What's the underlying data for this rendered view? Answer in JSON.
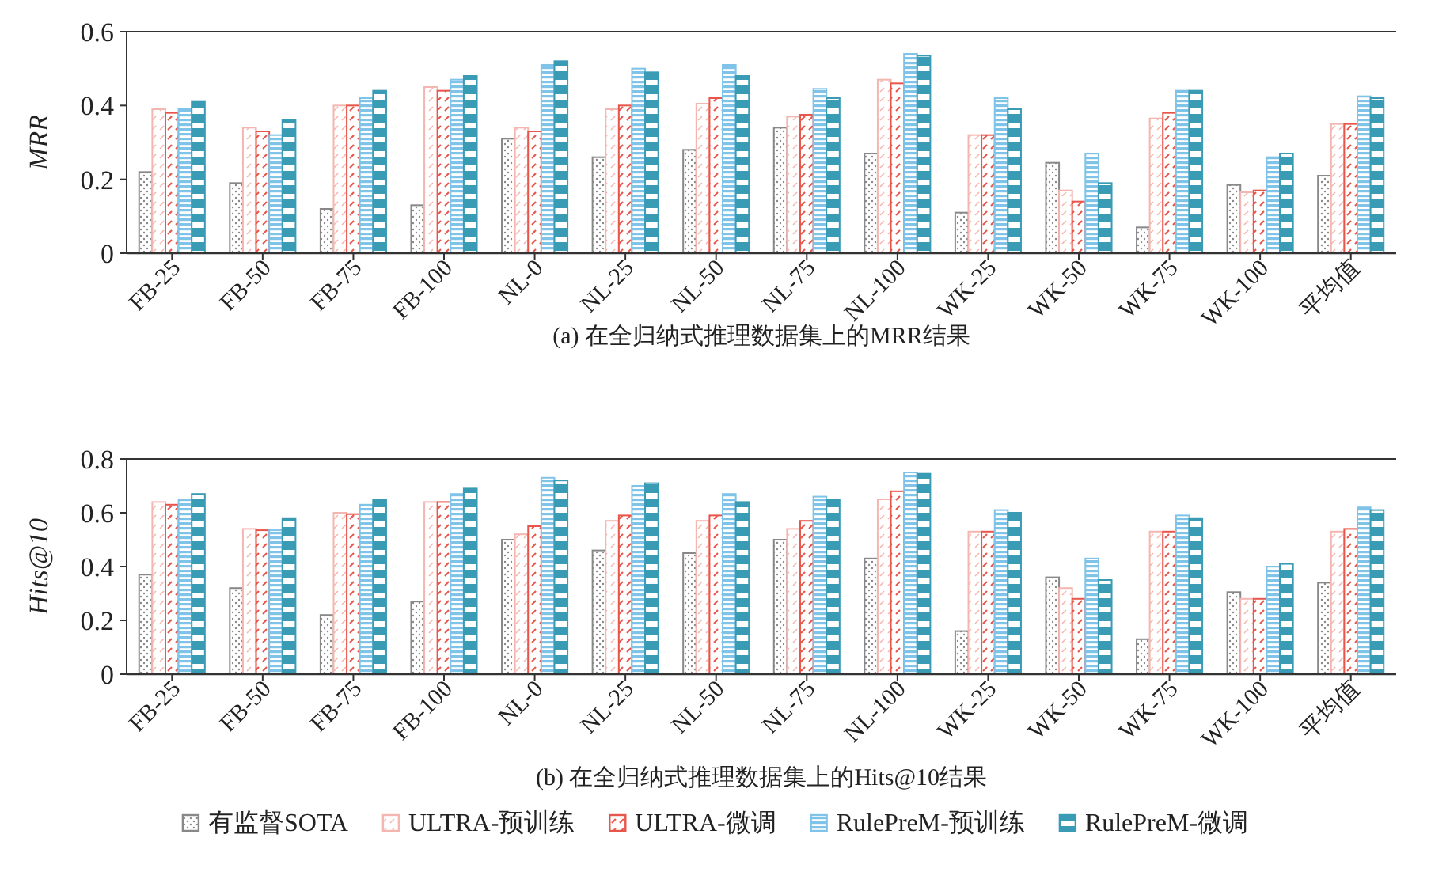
{
  "chart_data": [
    {
      "type": "bar",
      "title": "(a) 在全归纳式推理数据集上的MRR结果",
      "ylabel": "MRR",
      "ylim": [
        0,
        0.6
      ],
      "yticks": [
        0,
        0.2,
        0.4,
        0.6
      ],
      "categories": [
        "FB-25",
        "FB-50",
        "FB-75",
        "FB-100",
        "NL-0",
        "NL-25",
        "NL-50",
        "NL-75",
        "NL-100",
        "WK-25",
        "WK-50",
        "WK-75",
        "WK-100",
        "平均值"
      ],
      "series": [
        {
          "color": "#888888",
          "values": [
            0.22,
            0.19,
            0.12,
            0.13,
            0.31,
            0.26,
            0.28,
            0.34,
            0.27,
            0.11,
            0.245,
            0.07,
            0.185,
            0.21
          ]
        },
        {
          "color": "#f4b6b0",
          "values": [
            0.39,
            0.34,
            0.4,
            0.45,
            0.34,
            0.39,
            0.405,
            0.37,
            0.47,
            0.32,
            0.17,
            0.365,
            0.165,
            0.35
          ]
        },
        {
          "color": "#e8554a",
          "values": [
            0.38,
            0.33,
            0.4,
            0.44,
            0.33,
            0.4,
            0.42,
            0.375,
            0.46,
            0.32,
            0.14,
            0.38,
            0.17,
            0.35
          ]
        },
        {
          "color": "#7fc4e8",
          "values": [
            0.39,
            0.32,
            0.42,
            0.47,
            0.51,
            0.5,
            0.51,
            0.445,
            0.54,
            0.42,
            0.27,
            0.44,
            0.26,
            0.425
          ]
        },
        {
          "color": "#3a9bb5",
          "values": [
            0.41,
            0.36,
            0.44,
            0.48,
            0.52,
            0.49,
            0.48,
            0.42,
            0.535,
            0.39,
            0.19,
            0.44,
            0.27,
            0.42
          ]
        }
      ]
    },
    {
      "type": "bar",
      "title": "(b) 在全归纳式推理数据集上的Hits@10结果",
      "ylabel": "Hits@10",
      "ylim": [
        0,
        0.8
      ],
      "yticks": [
        0,
        0.2,
        0.4,
        0.6,
        0.8
      ],
      "legend": "bottom",
      "categories": [
        "FB-25",
        "FB-50",
        "FB-75",
        "FB-100",
        "NL-0",
        "NL-25",
        "NL-50",
        "NL-75",
        "NL-100",
        "WK-25",
        "WK-50",
        "WK-75",
        "WK-100",
        "平均值"
      ],
      "series": [
        {
          "name": "有监督SOTA",
          "color": "#888888",
          "values": [
            0.37,
            0.32,
            0.22,
            0.27,
            0.5,
            0.46,
            0.45,
            0.5,
            0.43,
            0.16,
            0.36,
            0.13,
            0.305,
            0.34
          ]
        },
        {
          "name": "ULTRA-预训练",
          "color": "#f4b6b0",
          "values": [
            0.64,
            0.54,
            0.6,
            0.64,
            0.52,
            0.57,
            0.57,
            0.54,
            0.65,
            0.53,
            0.32,
            0.53,
            0.28,
            0.53
          ]
        },
        {
          "name": "ULTRA-微调",
          "color": "#e8554a",
          "values": [
            0.63,
            0.535,
            0.595,
            0.64,
            0.55,
            0.59,
            0.59,
            0.57,
            0.68,
            0.53,
            0.28,
            0.53,
            0.28,
            0.54
          ]
        },
        {
          "name": "RulePreM-预训练",
          "color": "#7fc4e8",
          "values": [
            0.65,
            0.535,
            0.63,
            0.67,
            0.73,
            0.7,
            0.67,
            0.66,
            0.75,
            0.61,
            0.43,
            0.59,
            0.4,
            0.62
          ]
        },
        {
          "name": "RulePreM-微调",
          "color": "#3a9bb5",
          "values": [
            0.67,
            0.58,
            0.65,
            0.69,
            0.72,
            0.71,
            0.64,
            0.65,
            0.745,
            0.6,
            0.35,
            0.58,
            0.41,
            0.61
          ]
        }
      ]
    }
  ]
}
